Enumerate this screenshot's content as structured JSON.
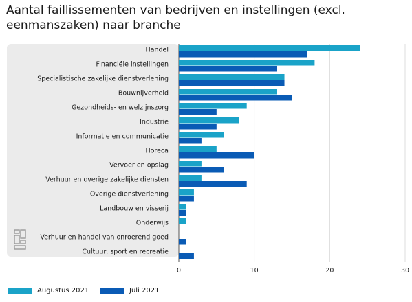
{
  "title": "Aantal faillissementen van bedrijven en instellingen (excl. eenmanszaken) naar branche",
  "chart_data": {
    "type": "bar",
    "orientation": "horizontal",
    "categories": [
      "Handel",
      "Financiële instellingen",
      "Specialistische zakelijke dienstverlening",
      "Bouwnijverheid",
      "Gezondheids- en welzijnszorg",
      "Industrie",
      "Informatie en communicatie",
      "Horeca",
      "Vervoer en opslag",
      "Verhuur en overige zakelijke diensten",
      "Overige dienstverlening",
      "Landbouw en visserij",
      "Onderwijs",
      "Verhuur en handel van onroerend goed",
      "Cultuur, sport en recreatie"
    ],
    "series": [
      {
        "name": "Augustus 2021",
        "color": "#1aa3c8",
        "values": [
          24,
          18,
          14,
          13,
          9,
          8,
          6,
          5,
          3,
          3,
          2,
          1,
          1,
          0,
          0
        ]
      },
      {
        "name": "Juli 2021",
        "color": "#0a5bb5",
        "values": [
          17,
          13,
          14,
          15,
          5,
          5,
          3,
          10,
          6,
          9,
          2,
          1,
          0,
          1,
          2
        ]
      }
    ],
    "xlim": [
      0,
      30
    ],
    "xticks": [
      "0",
      "10",
      "20",
      "30"
    ],
    "grid": true,
    "legend_position": "bottom-left"
  }
}
